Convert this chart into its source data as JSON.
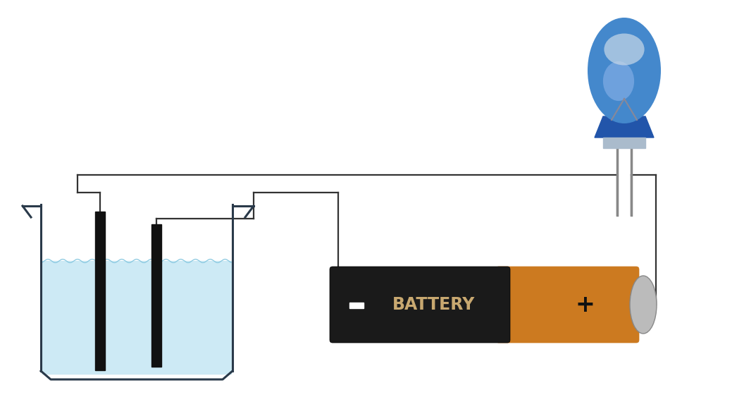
{
  "bg_color": "#ffffff",
  "wire_color": "#333333",
  "wire_lw": 1.6,
  "beaker_wall_color": "#2a3a4a",
  "beaker_wall_lw": 2.2,
  "water_color": "#c8e8f4",
  "electrode_color": "#111111",
  "battery_body_color": "#1a1a1a",
  "battery_tip_color": "#cc7a20",
  "battery_text_color": "#c8a870",
  "battery_text": "BATTERY",
  "led_dome_color": "#4488cc",
  "led_dome_mid": "#6699cc",
  "led_dome_highlight": "#99bbee",
  "led_base_color": "#2255aa",
  "led_body_color": "#aabbcc",
  "led_lead_color": "#888888",
  "cap_color": "#bbbbbb",
  "cap_edge_color": "#888888",
  "plus_color": "#111111",
  "minus_color": "#ffffff"
}
